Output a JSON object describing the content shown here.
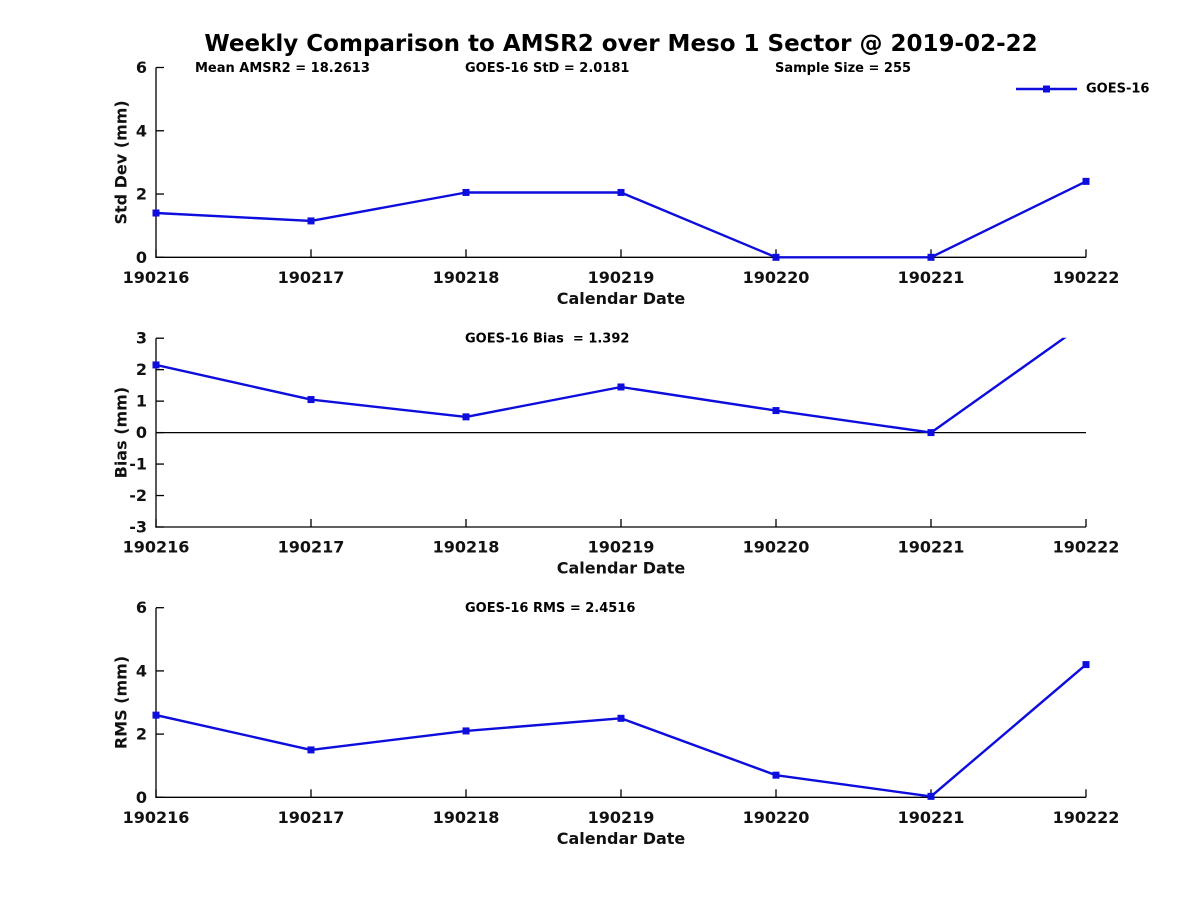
{
  "figure": {
    "title": "Weekly Comparison to AMSR2 over Meso 1 Sector @ 2019-02-22"
  },
  "colors": {
    "series_blue": "#0d0ddd",
    "axis_black": "#000000",
    "zero_line_black": "#000000",
    "text_black": "#111111"
  },
  "legend": {
    "label": "GOES-16"
  },
  "x_axis": {
    "label": "Calendar Date",
    "categories": [
      "190216",
      "190217",
      "190218",
      "190219",
      "190220",
      "190221",
      "190222"
    ]
  },
  "chart_data": [
    {
      "id": "std-dev",
      "type": "line",
      "categories": [
        "190216",
        "190217",
        "190218",
        "190219",
        "190220",
        "190221",
        "190222"
      ],
      "series": [
        {
          "name": "GOES-16",
          "values": [
            1.4,
            1.15,
            2.05,
            2.05,
            0.0,
            0.0,
            2.4
          ]
        }
      ],
      "xlabel": "Calendar Date",
      "ylabel": "Std Dev (mm)",
      "ylim": [
        0,
        6
      ],
      "yticks": [
        0,
        2,
        4,
        6
      ],
      "grid": false,
      "annotations": [
        "Mean AMSR2 = 18.2613",
        "GOES-16 StD = 2.0181",
        "Sample Size = 255"
      ],
      "legend": {
        "label": "GOES-16",
        "position": "top-right"
      },
      "marker": "square"
    },
    {
      "id": "bias",
      "type": "line",
      "categories": [
        "190216",
        "190217",
        "190218",
        "190219",
        "190220",
        "190221",
        "190222"
      ],
      "series": [
        {
          "name": "GOES-16",
          "values": [
            2.15,
            1.05,
            0.5,
            1.45,
            0.7,
            0.0,
            3.5
          ]
        }
      ],
      "xlabel": "Calendar Date",
      "ylabel": "Bias (mm)",
      "ylim": [
        -3,
        3
      ],
      "yticks": [
        -3,
        -2,
        -1,
        0,
        1,
        2,
        3
      ],
      "grid": false,
      "zero_line": true,
      "clip_note": "last point exceeds ylim and line is clipped at top",
      "annotations": [
        "GOES-16 Bias  = 1.392"
      ],
      "marker": "square"
    },
    {
      "id": "rms",
      "type": "line",
      "categories": [
        "190216",
        "190217",
        "190218",
        "190219",
        "190220",
        "190221",
        "190222"
      ],
      "series": [
        {
          "name": "GOES-16",
          "values": [
            2.6,
            1.5,
            2.1,
            2.5,
            0.7,
            0.03,
            4.2
          ]
        }
      ],
      "xlabel": "Calendar Date",
      "ylabel": "RMS (mm)",
      "ylim": [
        0,
        6
      ],
      "yticks": [
        0,
        2,
        4,
        6
      ],
      "grid": false,
      "annotations": [
        "GOES-16 RMS = 2.4516"
      ],
      "marker": "square"
    }
  ]
}
